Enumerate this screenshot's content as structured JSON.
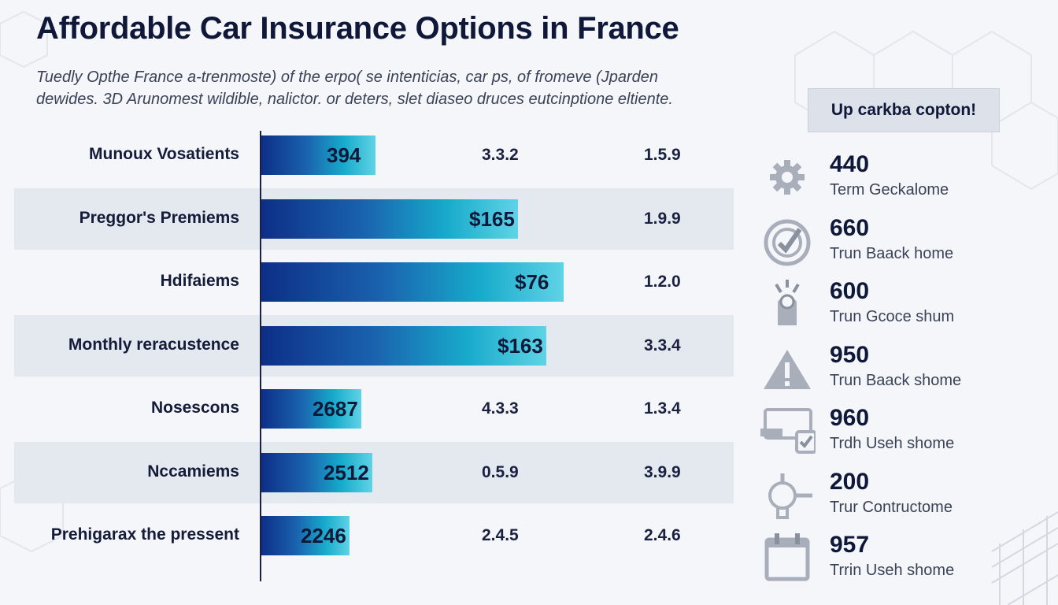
{
  "title": "Affordable Car Insurance Options in France",
  "subtitle_lines": [
    "Tuedly Opthe France a-trenmoste) of the erpo( se intenticias, car ps, of fromeve (Jparden",
    "dewides. 3D Arunomest wildible, nalictor. or deters, slet diaseo druces eutcinptione eltiente."
  ],
  "callout": "Up carkba copton!",
  "colors": {
    "accent_dark": "#0d2f86",
    "accent_light": "#5fd3e6",
    "band": "#e4e8ef",
    "text": "#141c3a"
  },
  "chart_data": {
    "type": "bar",
    "orientation": "horizontal",
    "title": "Affordable Car Insurance Options in France",
    "categories": [
      "Munoux Vosatients",
      "Preggor's Premiems",
      "Hdifaiems",
      "Monthly reracustence",
      "Nosescons",
      "Nccamiems",
      "Prehigarax the pressent"
    ],
    "values": [
      0.4,
      0.9,
      1.06,
      1.0,
      0.35,
      0.39,
      0.31
    ],
    "bar_labels": [
      "394",
      "$165",
      "$76",
      "$163",
      "2687",
      "2512",
      "2246"
    ],
    "column_2": [
      "3.3.2",
      "",
      "",
      "",
      "4.3.3",
      "0.5.9",
      "2.4.5"
    ],
    "column_3": [
      "1.5.9",
      "1.9.9",
      "1.2.0",
      "3.3.4",
      "1.3.4",
      "3.9.9",
      "2.4.6"
    ],
    "banded_rows": [
      1,
      3,
      5
    ],
    "xlim": [
      0,
      1.2
    ]
  },
  "stats": [
    {
      "icon": "gear-icon",
      "value": "440",
      "label": "Term Geckalome"
    },
    {
      "icon": "target-check-icon",
      "value": "660",
      "label": "Trun Baack home"
    },
    {
      "icon": "siren-icon",
      "value": "600",
      "label": "Trun Gcoce shum"
    },
    {
      "icon": "warning-icon",
      "value": "950",
      "label": "Trun Baack shome"
    },
    {
      "icon": "monitor-check-icon",
      "value": "960",
      "label": "Trdh Useh shome"
    },
    {
      "icon": "wrench-gauge-icon",
      "value": "200",
      "label": "Trur Contructome"
    },
    {
      "icon": "calendar-icon",
      "value": "957",
      "label": "Trrin Useh shome"
    }
  ]
}
